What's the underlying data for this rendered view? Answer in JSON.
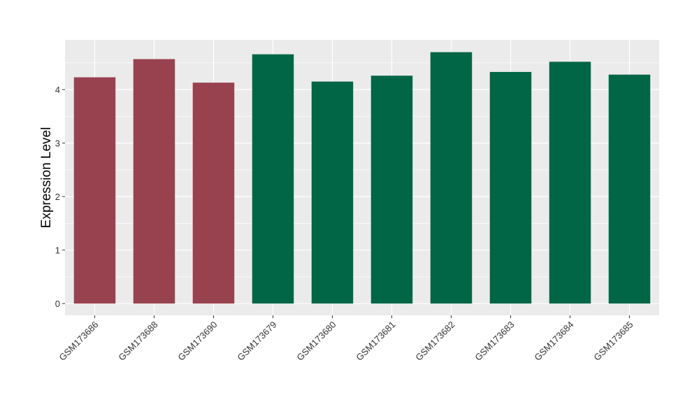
{
  "chart_data": {
    "type": "bar",
    "title": "",
    "xlabel": "",
    "ylabel": "Expression Level",
    "ylim": [
      -0.22,
      4.93
    ],
    "yticks": [
      0,
      1,
      2,
      3,
      4
    ],
    "grid": true,
    "legend": "none",
    "categories": [
      "GSM173686",
      "GSM173688",
      "GSM173690",
      "GSM173679",
      "GSM173680",
      "GSM173681",
      "GSM173682",
      "GSM173683",
      "GSM173684",
      "GSM173685"
    ],
    "values": [
      4.23,
      4.57,
      4.13,
      4.66,
      4.15,
      4.26,
      4.7,
      4.33,
      4.52,
      4.28
    ],
    "bar_colors": [
      "#99424f",
      "#99424f",
      "#99424f",
      "#006645",
      "#006645",
      "#006645",
      "#006645",
      "#006645",
      "#006645",
      "#006645"
    ],
    "panel_background": "#ebebeb",
    "gridline_color": "#ffffff"
  }
}
